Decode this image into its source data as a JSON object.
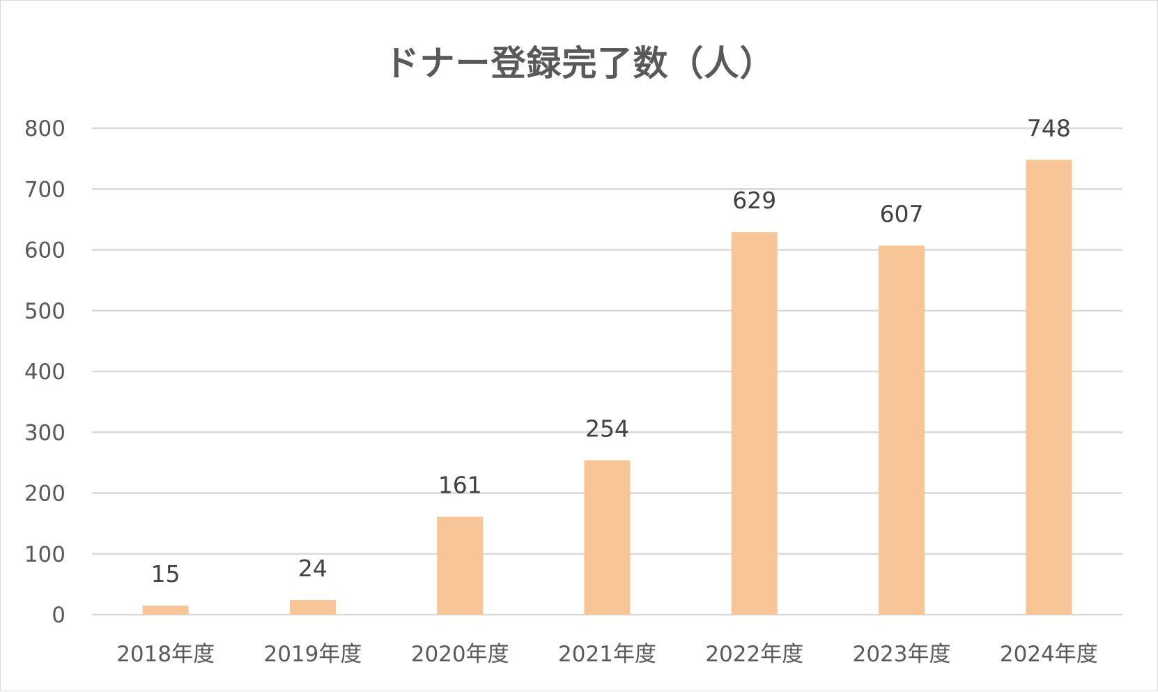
{
  "chart_data": {
    "type": "bar",
    "title": "ドナー登録完了数（人）",
    "categories": [
      "2018年度",
      "2019年度",
      "2020年度",
      "2021年度",
      "2022年度",
      "2023年度",
      "2024年度"
    ],
    "values": [
      15,
      24,
      161,
      254,
      629,
      607,
      748
    ],
    "data_labels": [
      "15",
      "24",
      "161",
      "254",
      "629",
      "607",
      "748"
    ],
    "ylim": [
      0,
      800
    ],
    "y_ticks": [
      "0",
      "100",
      "200",
      "300",
      "400",
      "500",
      "600",
      "700",
      "800"
    ],
    "xlabel": "",
    "ylabel": "",
    "grid": true,
    "legend": "none",
    "bar_color": "#F8C696",
    "gridline_color": "#D9D9D9",
    "text_color": "#595959"
  }
}
